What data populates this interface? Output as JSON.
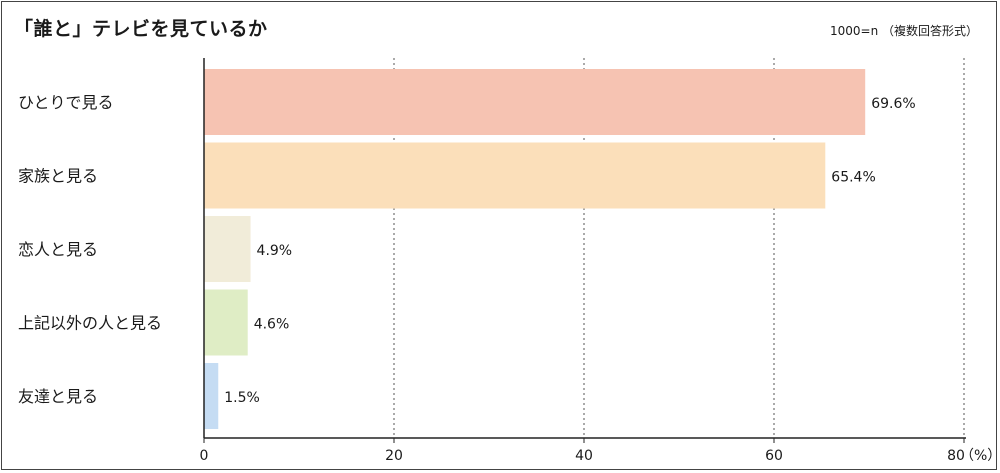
{
  "header": {
    "title": "「誰と」テレビを見ているか",
    "sample_note": "1000=n （複数回答形式）"
  },
  "chart_data": {
    "type": "bar",
    "orientation": "horizontal",
    "title": "「誰と」テレビを見ているか",
    "categories": [
      "ひとりで見る",
      "家族と見る",
      "恋人と見る",
      "上記以外の人と見る",
      "友達と見る"
    ],
    "values": [
      69.6,
      65.4,
      4.9,
      4.6,
      1.5
    ],
    "value_labels": [
      "69.6%",
      "65.4%",
      "4.9%",
      "4.6%",
      "1.5%"
    ],
    "colors": [
      "#f6c3b2",
      "#fbdfba",
      "#f1ecd9",
      "#dfedc5",
      "#c5dcf3"
    ],
    "xlim": [
      0,
      80
    ],
    "xticks": [
      0,
      20,
      40,
      60,
      80
    ],
    "xticklabels": [
      "0",
      "20",
      "40",
      "60",
      "80"
    ],
    "xunit": "（%）",
    "grid": "vertical-dashed"
  }
}
